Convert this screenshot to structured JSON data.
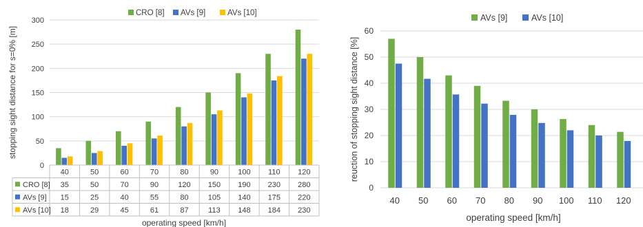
{
  "colors": {
    "cro": "#70ad47",
    "avs9": "#4472c4",
    "avs10": "#ffc000",
    "grid": "#d9d9d9",
    "text": "#404040"
  },
  "chart_data": [
    {
      "type": "bar",
      "with_data_table": true,
      "categories": [
        "40",
        "50",
        "60",
        "70",
        "80",
        "90",
        "100",
        "110",
        "120"
      ],
      "series": [
        {
          "name": "CRO [8]",
          "values": [
            35,
            50,
            70,
            90,
            120,
            150,
            190,
            230,
            280
          ]
        },
        {
          "name": "AVs [9]",
          "values": [
            15,
            25,
            40,
            55,
            80,
            105,
            140,
            175,
            220
          ]
        },
        {
          "name": "AVs [10]",
          "values": [
            18,
            29,
            45,
            61,
            87,
            113,
            148,
            184,
            230
          ]
        }
      ],
      "title": "",
      "xlabel": "operating speed [km/h]",
      "ylabel": "stopping sight distance for s=0% [m]",
      "ylim": [
        0,
        300
      ],
      "yticks": [
        0,
        50,
        100,
        150,
        200,
        250,
        300
      ],
      "grid": true,
      "legend_position": "top"
    },
    {
      "type": "bar",
      "categories": [
        "40",
        "50",
        "60",
        "70",
        "80",
        "90",
        "100",
        "110",
        "120"
      ],
      "series": [
        {
          "name": "AVs [9]",
          "values": [
            57,
            50,
            43,
            39,
            33.3,
            30,
            26.3,
            24,
            21.4
          ]
        },
        {
          "name": "AVs [10]",
          "values": [
            47.5,
            41.7,
            35.7,
            32.2,
            27.9,
            24.8,
            22,
            20,
            17.9
          ]
        }
      ],
      "title": "",
      "xlabel": "operating speed [km/h]",
      "ylabel": "reuction of stopping sight distance [%]",
      "ylim": [
        0,
        60
      ],
      "yticks": [
        0,
        10,
        20,
        30,
        40,
        50,
        60
      ],
      "grid": true,
      "legend_position": "top"
    }
  ]
}
